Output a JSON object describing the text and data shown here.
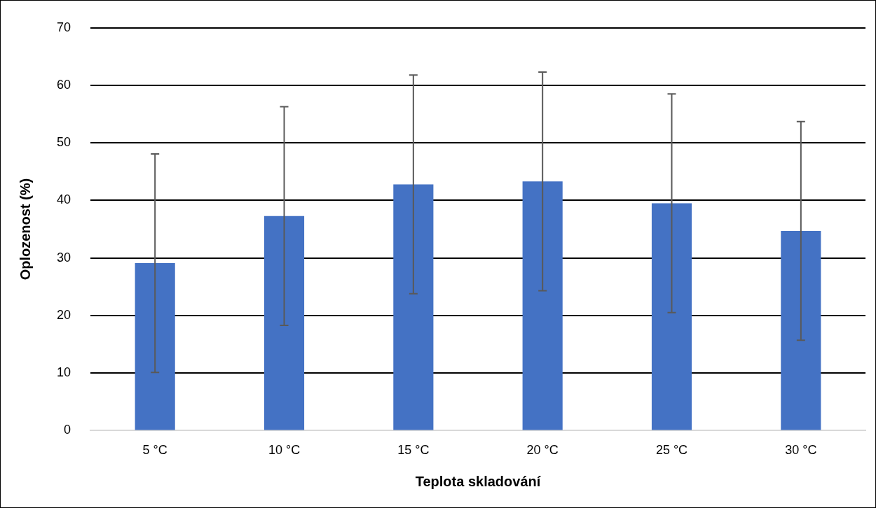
{
  "chart_data": {
    "type": "bar",
    "xlabel": "Teplota skladování",
    "ylabel": "Oplozenost (%)",
    "categories": [
      "5 °C",
      "10 °C",
      "15 °C",
      "20 °C",
      "25 °C",
      "30 °C"
    ],
    "values": [
      29.1,
      37.3,
      42.8,
      43.3,
      39.5,
      34.7
    ],
    "errors": [
      19.0,
      19.0,
      19.0,
      19.0,
      19.0,
      19.0
    ],
    "color": "#4472c4",
    "ylim": [
      0,
      70
    ],
    "yticks": [
      0,
      10,
      20,
      30,
      40,
      50,
      60,
      70
    ],
    "grid": "y",
    "legend": false
  }
}
